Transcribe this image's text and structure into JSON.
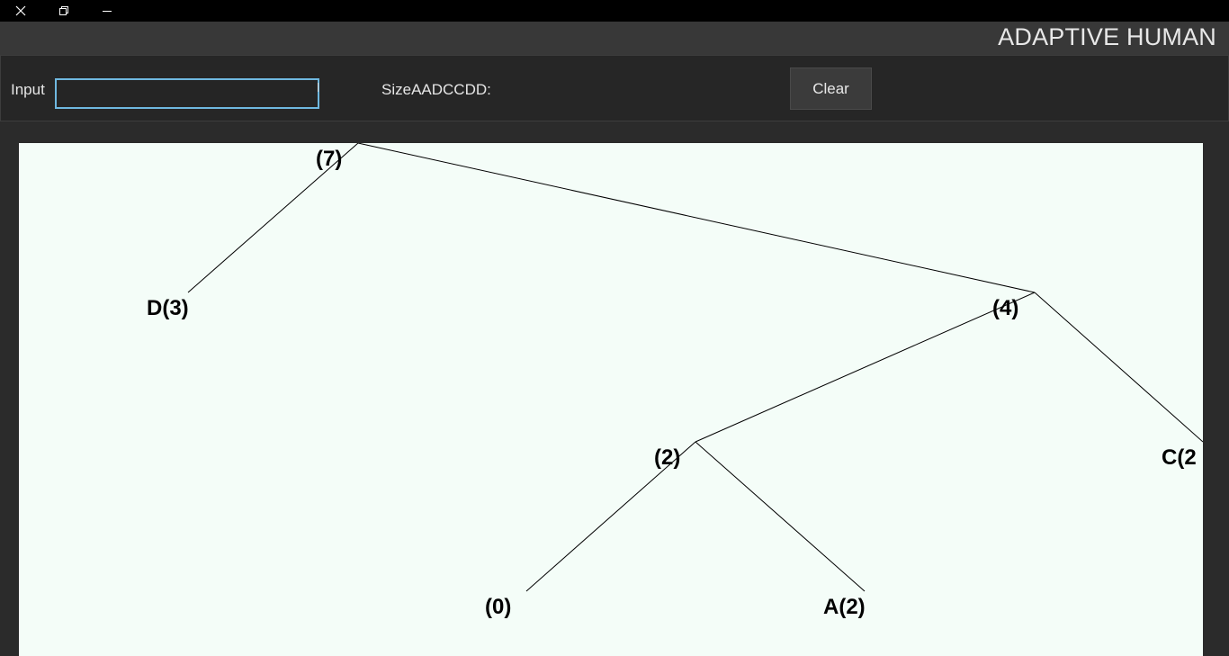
{
  "window": {
    "buttons": [
      {
        "name": "close",
        "icon": "close-icon"
      },
      {
        "name": "restore",
        "icon": "restore-icon"
      },
      {
        "name": "minimize",
        "icon": "minimize-icon"
      }
    ]
  },
  "header": {
    "title": "ADAPTIVE HUMAN"
  },
  "controls": {
    "input_label": "Input",
    "input_value": "",
    "size_label": "SizeAADCCDD:",
    "clear_label": "Clear"
  },
  "tree": {
    "nodes": [
      {
        "id": "root",
        "label": "(7)"
      },
      {
        "id": "d",
        "label": "D(3)"
      },
      {
        "id": "n4",
        "label": "(4)"
      },
      {
        "id": "n2",
        "label": "(2)"
      },
      {
        "id": "c",
        "label": "C(2"
      },
      {
        "id": "n0",
        "label": "(0)"
      },
      {
        "id": "a",
        "label": "A(2)"
      }
    ],
    "edges": [
      [
        "root",
        "d"
      ],
      [
        "root",
        "n4"
      ],
      [
        "n4",
        "n2"
      ],
      [
        "n4",
        "c"
      ],
      [
        "n2",
        "n0"
      ],
      [
        "n2",
        "a"
      ]
    ]
  }
}
